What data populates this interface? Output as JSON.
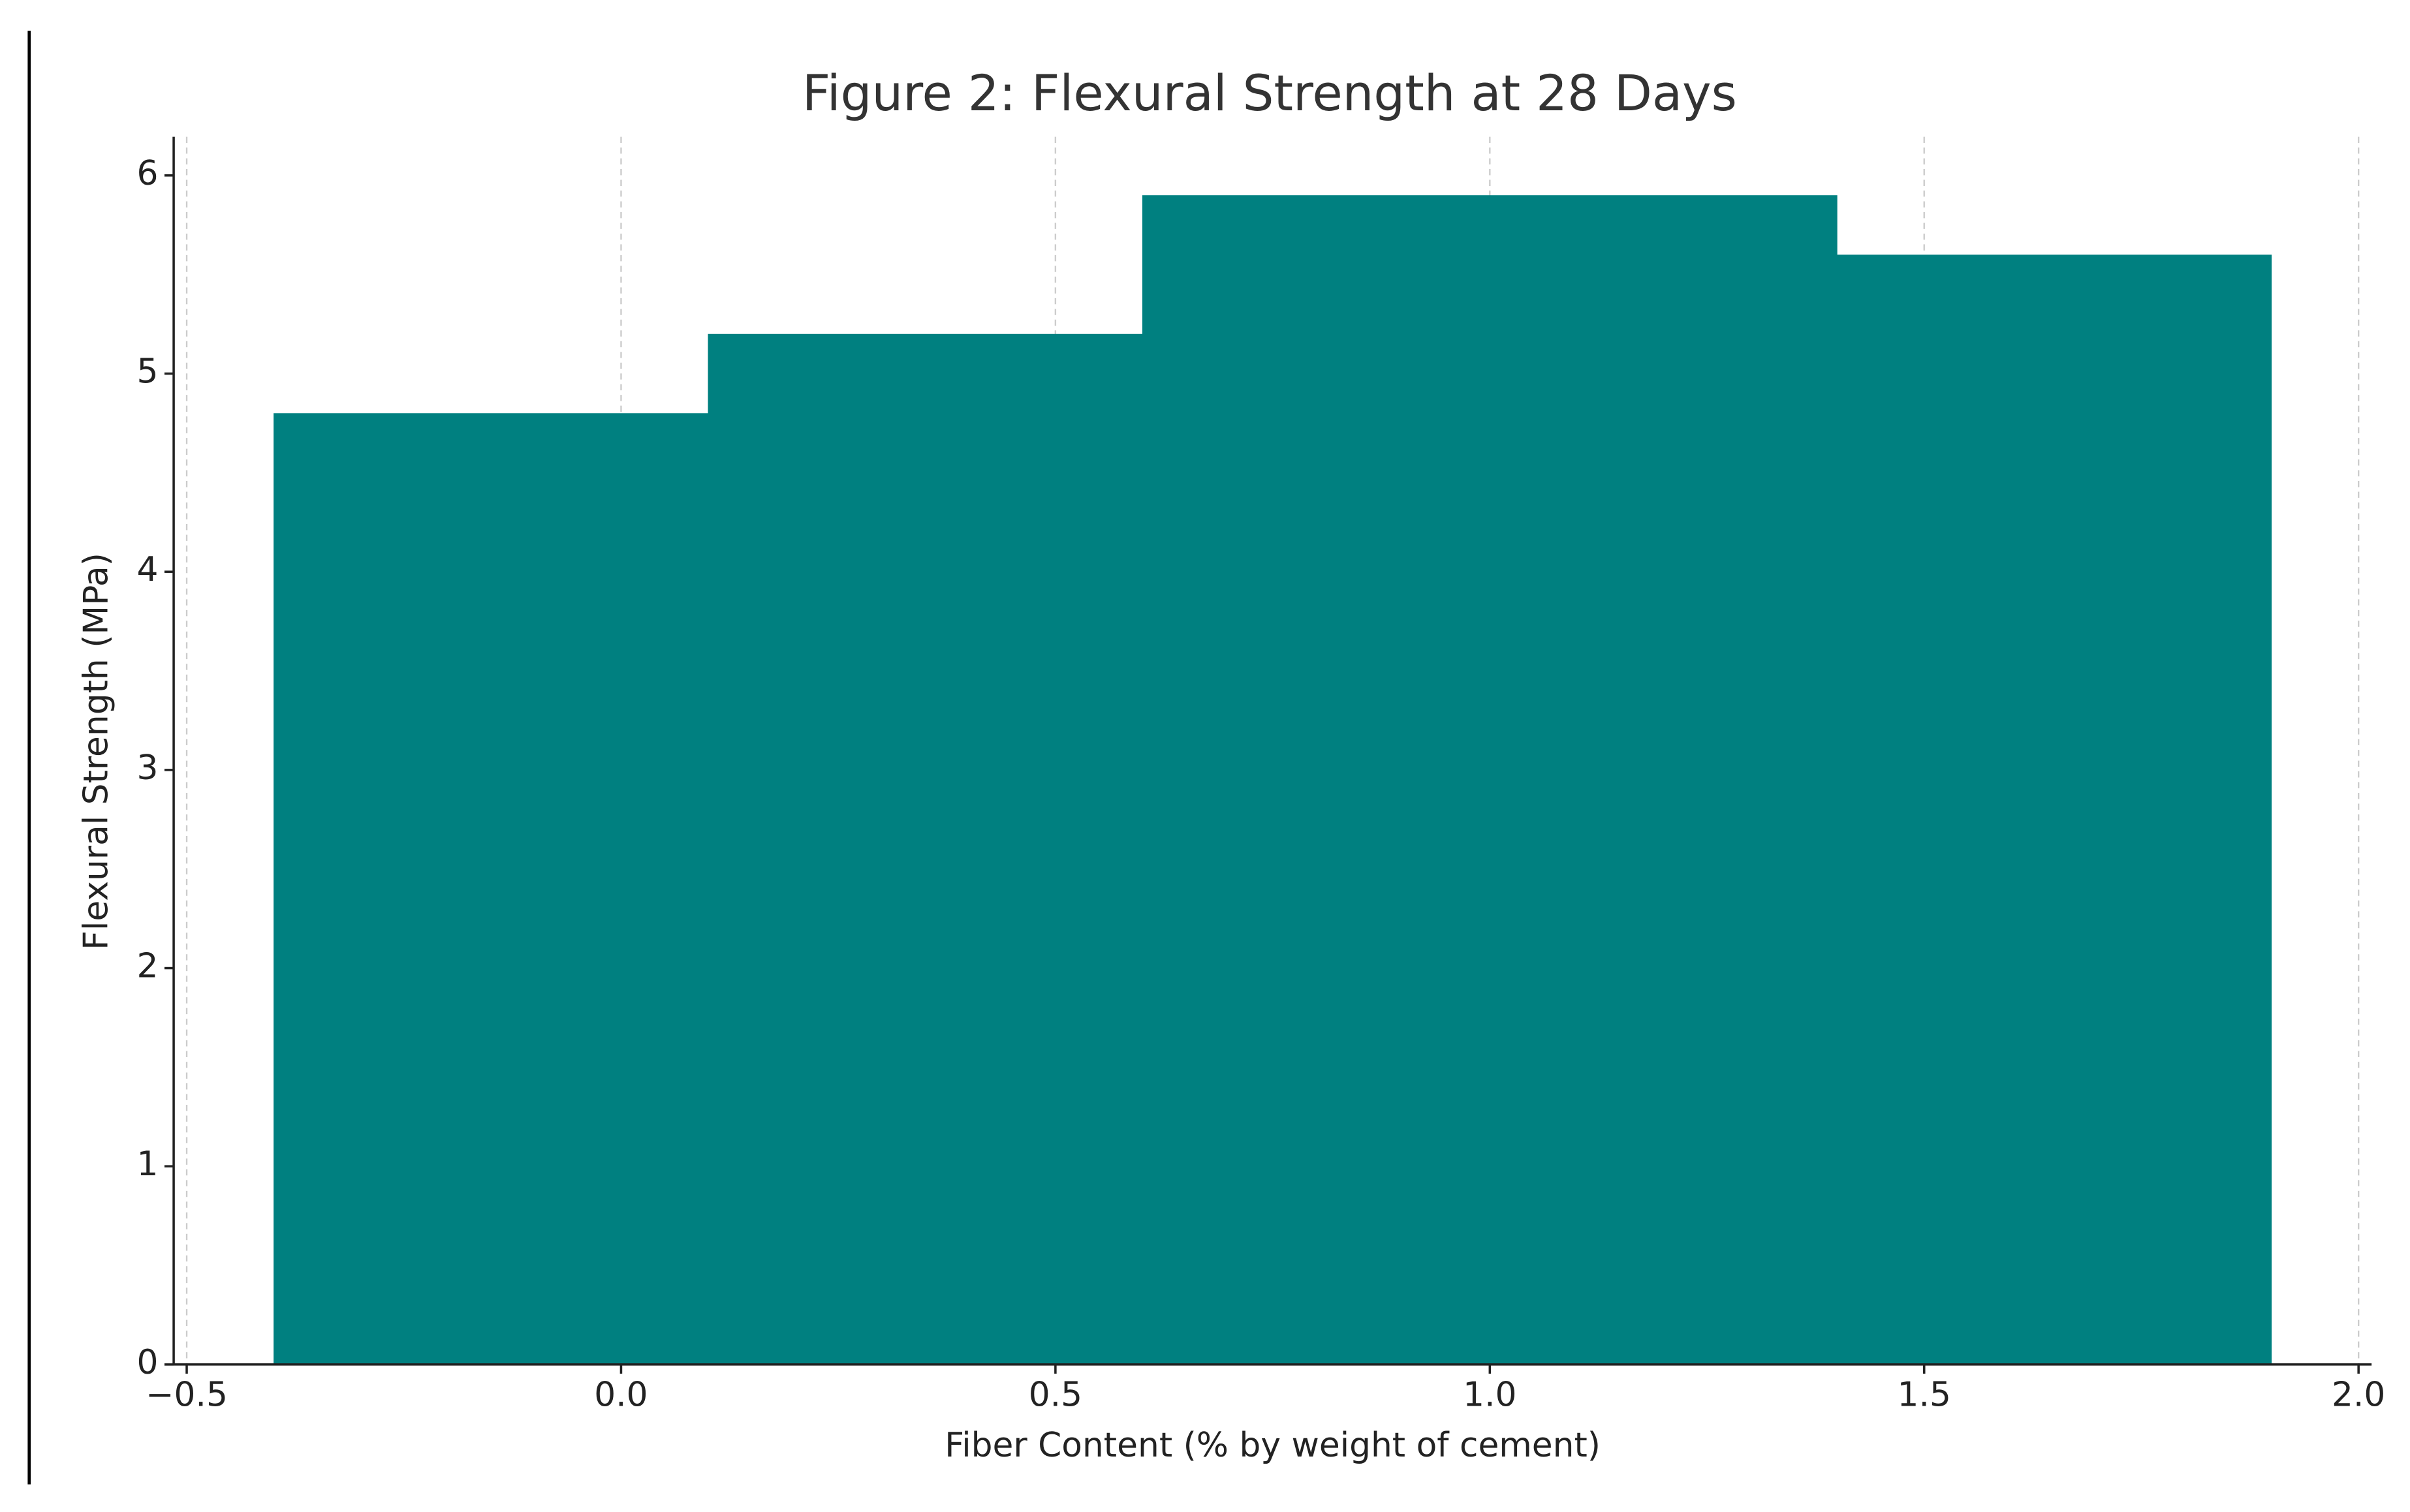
{
  "chart_data": {
    "type": "bar",
    "title": "Figure 2: Flexural Strength at 28 Days",
    "x_label": "Fiber Content (% by weight of cement)",
    "y_label": "Flexural Strength (MPa)",
    "x": [
      0,
      0.5,
      1.0,
      1.5
    ],
    "values": [
      4.8,
      5.2,
      5.9,
      5.6
    ],
    "color": "#008080",
    "bar_width": 0.8,
    "xlim": [
      -0.515,
      2.015
    ],
    "xticks": [
      {
        "value": -0.5,
        "label": "−0.5"
      },
      {
        "value": 0,
        "label": "0.0"
      },
      {
        "value": 0.5,
        "label": "0.5"
      },
      {
        "value": 1,
        "label": "1.0"
      },
      {
        "value": 1.5,
        "label": "1.5"
      },
      {
        "value": 2,
        "label": "2.0"
      }
    ],
    "ylim": [
      0,
      6.195
    ],
    "yticks": [
      0,
      1,
      2,
      3,
      4,
      5,
      6
    ],
    "grid": "x"
  }
}
